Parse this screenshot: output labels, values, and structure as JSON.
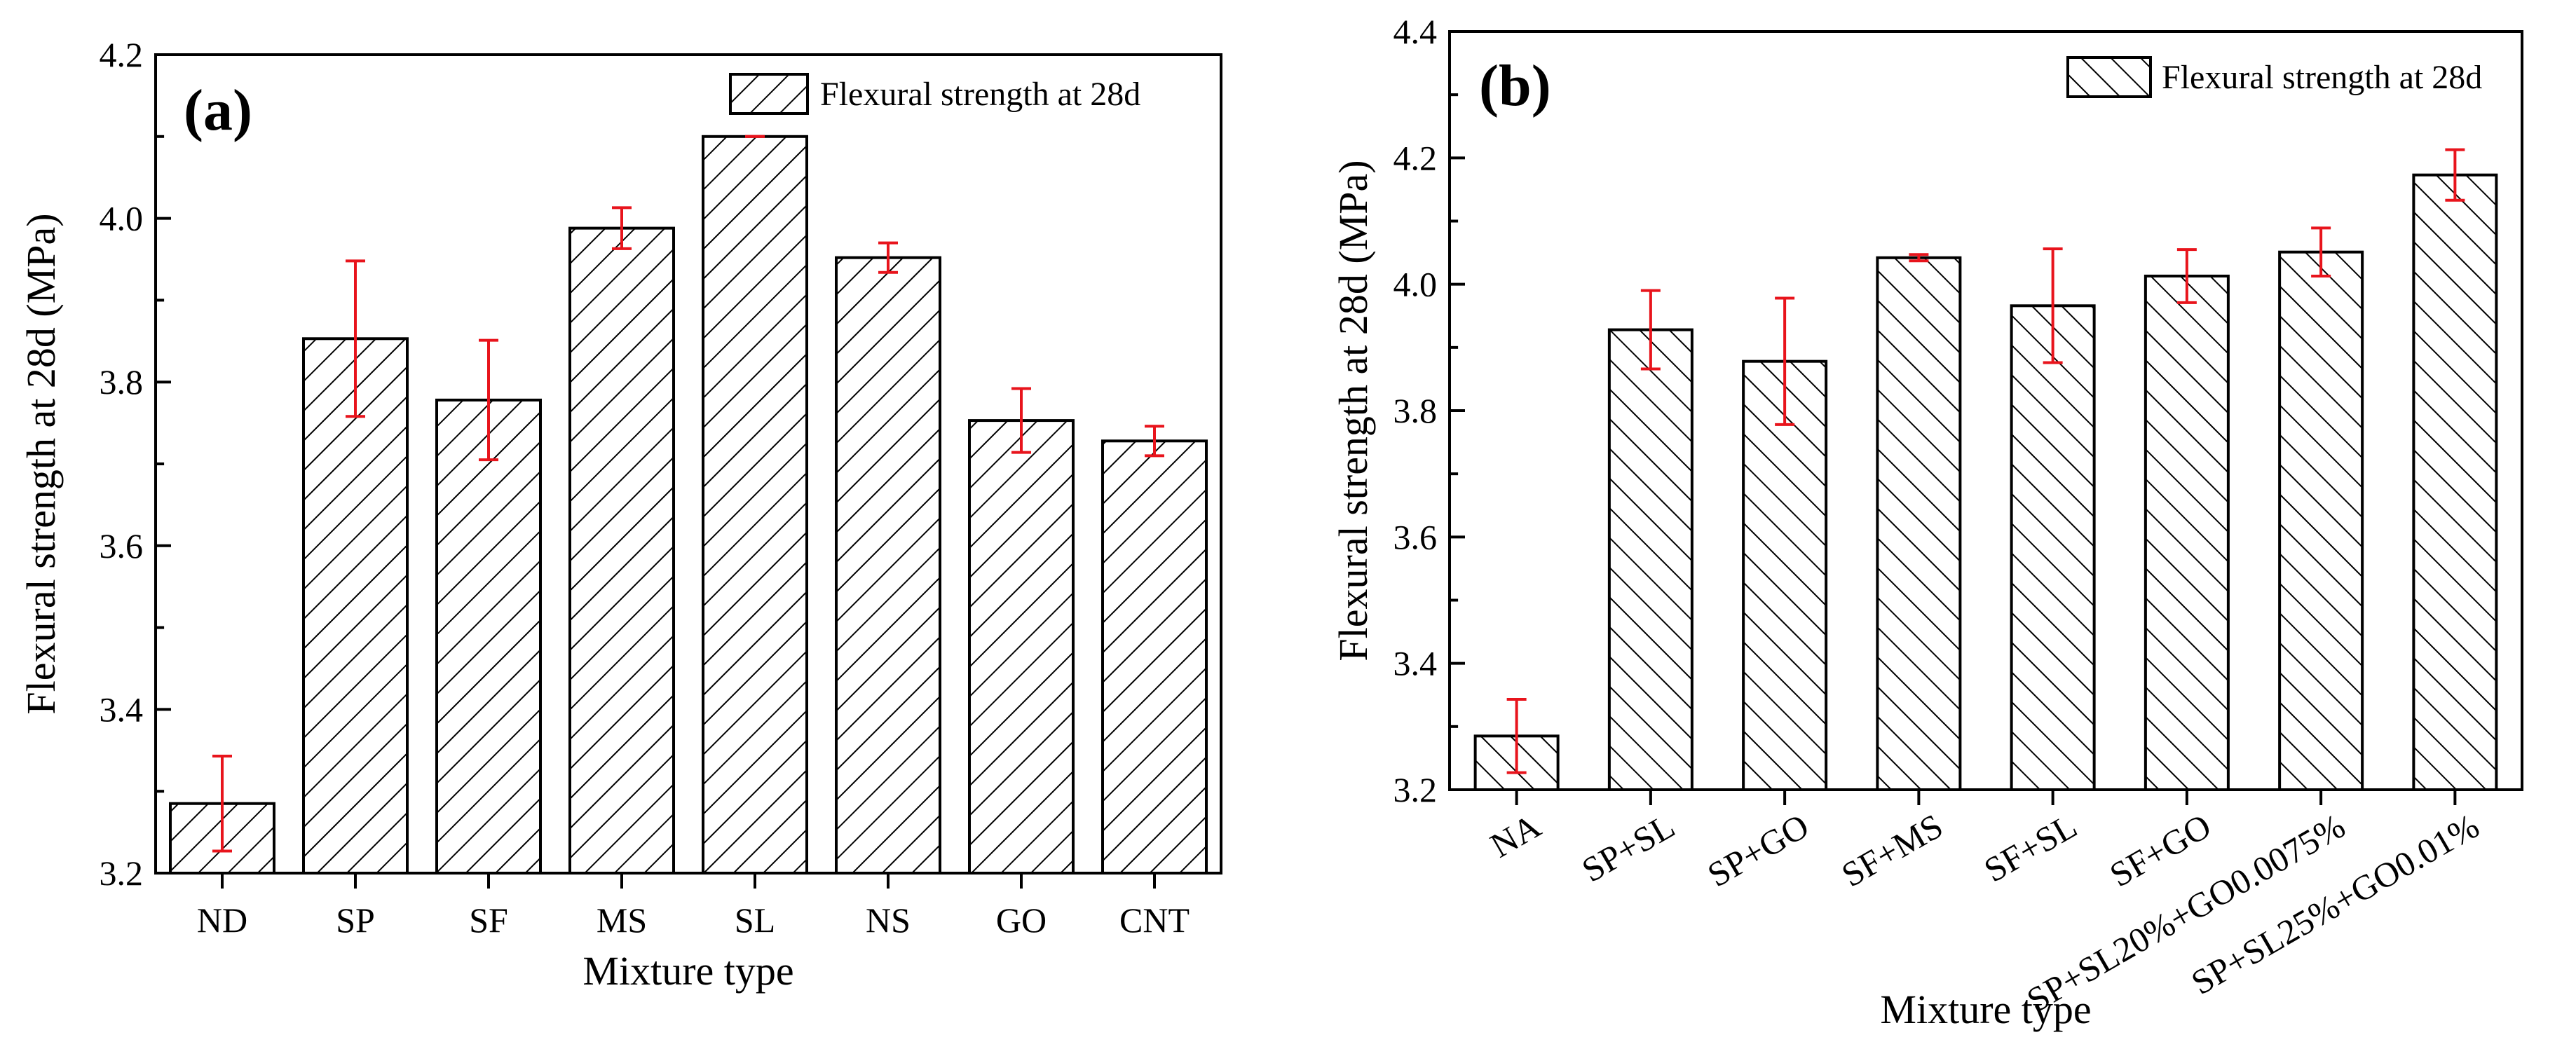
{
  "chart_data": [
    {
      "type": "bar",
      "panel_label": "(a)",
      "xlabel": "Mixture type",
      "ylabel": "Flexural strength at 28d (MPa)",
      "ylim": [
        3.2,
        4.2
      ],
      "yticks": [
        "3.2",
        "3.4",
        "3.6",
        "3.8",
        "4.0",
        "4.2"
      ],
      "categories": [
        "ND",
        "SP",
        "SF",
        "MS",
        "SL",
        "NS",
        "GO",
        "CNT"
      ],
      "series": [
        {
          "name": "Flexural strength at 28d",
          "values": [
            3.285,
            3.853,
            3.778,
            3.988,
            4.1,
            3.952,
            3.753,
            3.728
          ],
          "errors": [
            0.058,
            0.095,
            0.073,
            0.025,
            0.0,
            0.018,
            0.039,
            0.018
          ]
        }
      ],
      "hatch": "forward-diagonal",
      "error_bar_color": "#e8141c",
      "legend_position": "top-right",
      "grid": false
    },
    {
      "type": "bar",
      "panel_label": "(b)",
      "xlabel": "Mixture type",
      "ylabel": "Flexural strength at 28d (MPa)",
      "ylim": [
        3.2,
        4.4
      ],
      "yticks": [
        "3.2",
        "3.4",
        "3.6",
        "3.8",
        "4.0",
        "4.2",
        "4.4"
      ],
      "categories": [
        "NA",
        "SP+SL",
        "SP+GO",
        "SF+MS",
        "SF+SL",
        "SF+GO",
        "SP+SL20%+GO0.0075%",
        "SP+SL25%+GO0.01%"
      ],
      "series": [
        {
          "name": "Flexural strength at 28d",
          "values": [
            3.285,
            3.928,
            3.878,
            4.042,
            3.966,
            4.013,
            4.051,
            4.173
          ],
          "errors": [
            0.058,
            0.062,
            0.1,
            0.005,
            0.09,
            0.042,
            0.038,
            0.04
          ]
        }
      ],
      "hatch": "backward-diagonal",
      "error_bar_color": "#e8141c",
      "legend_position": "top-right",
      "grid": false
    }
  ]
}
